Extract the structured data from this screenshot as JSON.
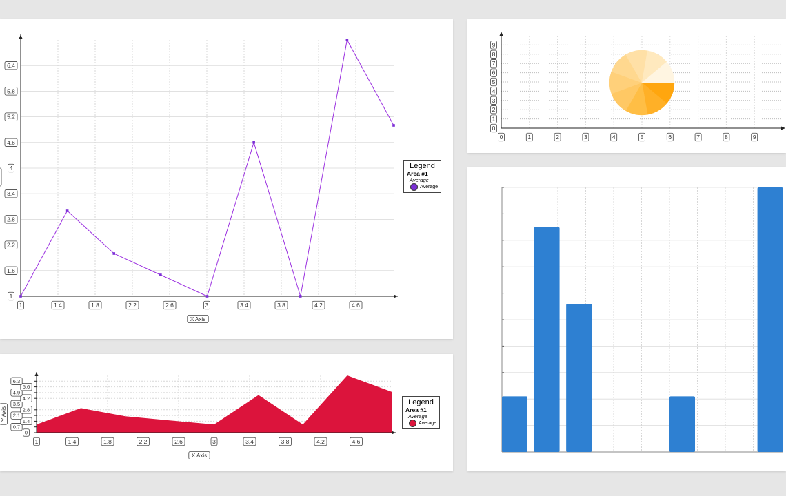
{
  "colors": {
    "line": "#9b30e0",
    "area": "#dc143c",
    "bar": "#2e80d2",
    "pie": [
      "#fff5e1",
      "#ffe9be",
      "#ffe0a6",
      "#ffd88f",
      "#ffd07a",
      "#ffc864",
      "#ffbe45",
      "#ffb027",
      "#ffa60e"
    ]
  },
  "chart_data": [
    {
      "type": "line",
      "x": [
        1,
        1.5,
        2,
        2.5,
        3,
        3.5,
        4,
        4.5,
        5
      ],
      "y": [
        1,
        3,
        2,
        1.5,
        1,
        4.6,
        1,
        7,
        5
      ],
      "x_ticks": [
        "1",
        "1.4",
        "1.8",
        "2.2",
        "2.6",
        "3",
        "3.4",
        "3.8",
        "4.2",
        "4.6"
      ],
      "y_ticks": [
        "1",
        "1.6",
        "2.2",
        "2.8",
        "3.4",
        "4",
        "4.6",
        "5.2",
        "5.8",
        "6.4"
      ],
      "xlabel": "X Axis",
      "xlim": [
        1,
        5
      ],
      "ylim": [
        1,
        7
      ],
      "grid": true,
      "legend": {
        "title": "Legend",
        "area": "Area #1",
        "group": "Average",
        "item": "Average"
      }
    },
    {
      "type": "area",
      "x": [
        1,
        1.5,
        2,
        2.5,
        3,
        3.5,
        4,
        4.5,
        5
      ],
      "y": [
        1,
        3,
        2,
        1.5,
        1,
        4.6,
        1,
        7,
        5
      ],
      "x_ticks": [
        "1",
        "1.4",
        "1.8",
        "2.2",
        "2.6",
        "3",
        "3.4",
        "3.8",
        "4.2",
        "4.6"
      ],
      "y_ticks": [
        "0",
        "0.7",
        "1.4",
        "2.1",
        "2.8",
        "3.5",
        "4.2",
        "4.9",
        "5.6",
        "6.3"
      ],
      "xlabel": "X Axis",
      "ylabel": "Y Axis",
      "xlim": [
        1,
        5
      ],
      "ylim": [
        0,
        7
      ],
      "grid": true,
      "legend": {
        "title": "Legend",
        "area": "Area #1",
        "group": "Average",
        "item": "Average"
      }
    },
    {
      "type": "pie",
      "values": [
        1,
        1,
        1,
        1,
        1,
        1,
        1,
        1,
        1
      ],
      "x_ticks": [
        "0",
        "1",
        "2",
        "3",
        "4",
        "5",
        "6",
        "7",
        "8",
        "9"
      ],
      "y_ticks": [
        "0",
        "1",
        "2",
        "3",
        "4",
        "5",
        "6",
        "7",
        "8",
        "9"
      ],
      "grid": true
    },
    {
      "type": "bar",
      "values": [
        2.1,
        8.5,
        5.6,
        0,
        0,
        2.1,
        0,
        10
      ],
      "ylim": [
        0,
        10
      ],
      "grid": true
    }
  ]
}
